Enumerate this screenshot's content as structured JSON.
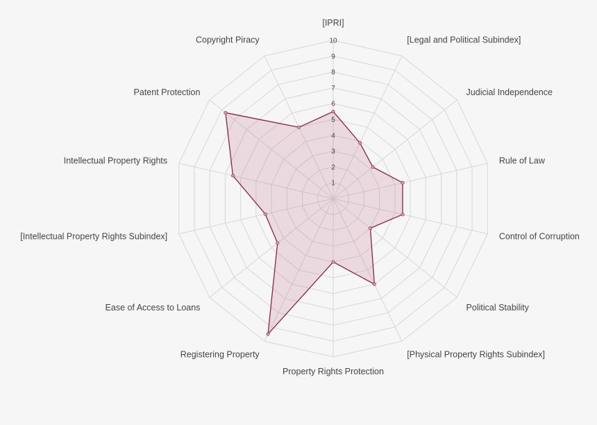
{
  "chart_data": {
    "type": "radar",
    "axes": [
      "[IPRI]",
      "[Legal and Political Subindex]",
      "Judicial Independence",
      "Rule of Law",
      "Control of Corruption",
      "Political Stability",
      "[Physical Property Rights Subindex]",
      "Property Rights Protection",
      "Registering Property",
      "Ease of Access to Loans",
      "[Intellectual Property Rights Subindex]",
      "Intellectual Property Rights",
      "Patent Protection",
      "Copyright Piracy"
    ],
    "values": [
      5.5,
      3.9,
      3.2,
      4.5,
      4.5,
      3.0,
      6.0,
      4.0,
      9.5,
      4.5,
      4.4,
      6.5,
      8.7,
      5.0
    ],
    "rlim": [
      0,
      10
    ],
    "ticks": [
      "1",
      "2",
      "3",
      "4",
      "5",
      "6",
      "7",
      "8",
      "9",
      "10"
    ],
    "grid": true,
    "colors": {
      "line": "#8a2342",
      "fill": "rgba(190,120,140,0.22)",
      "point": "#c9a0ad",
      "grid": "#d7d7d7",
      "background": "#f6f6f6"
    }
  }
}
